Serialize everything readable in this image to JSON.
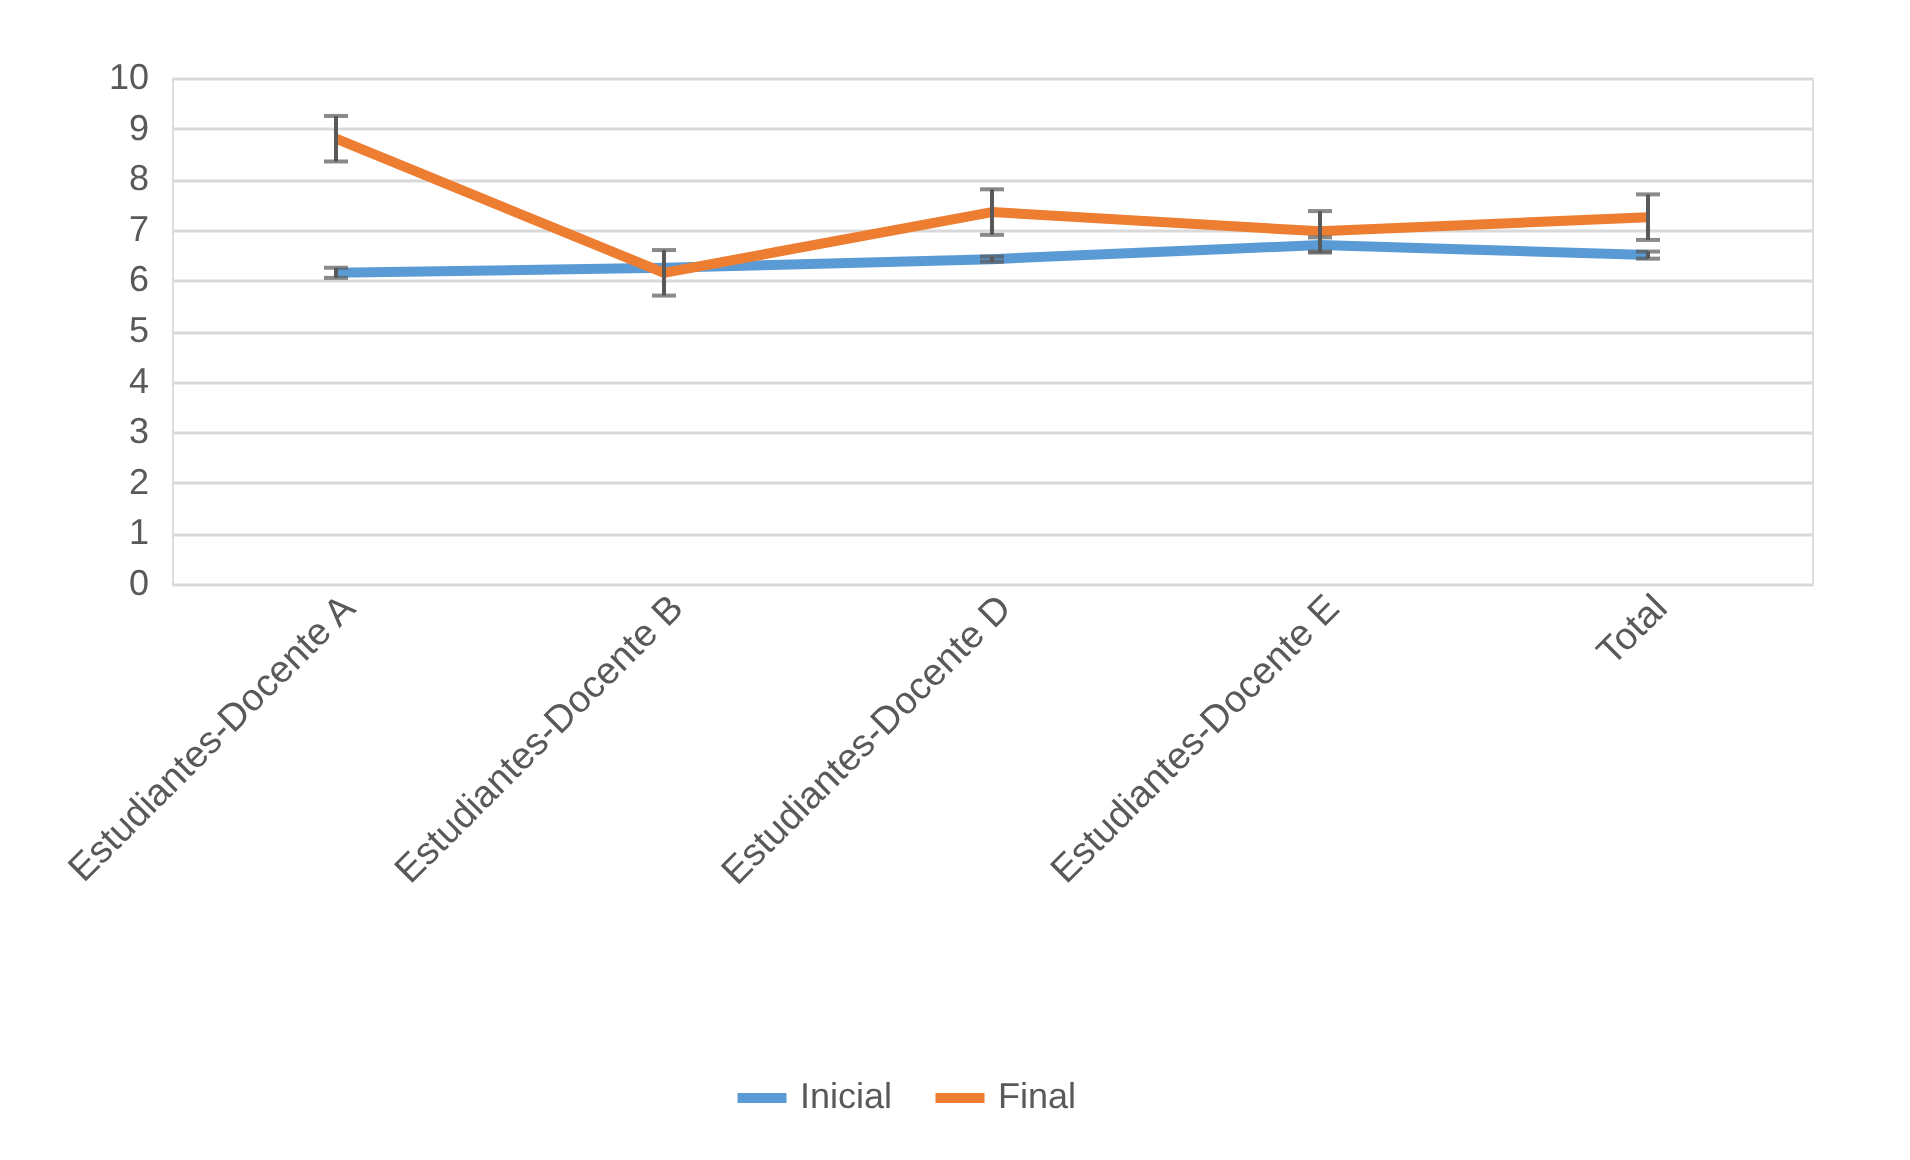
{
  "chart_data": {
    "type": "line",
    "categories": [
      "Estudiantes-Docente A",
      "Estudiantes-Docente B",
      "Estudiantes-Docente D",
      "Estudiantes-Docente E",
      "Total"
    ],
    "series": [
      {
        "name": "Inicial",
        "color": "#5b9bd5",
        "values": [
          6.15,
          6.25,
          6.42,
          6.7,
          6.5
        ],
        "errors": [
          0.1,
          null,
          0.05,
          0.15,
          0.07
        ]
      },
      {
        "name": "Final",
        "color": "#ed7d31",
        "values": [
          8.8,
          6.15,
          7.35,
          6.97,
          7.25
        ],
        "errors": [
          0.45,
          0.45,
          0.45,
          0.4,
          0.45
        ]
      }
    ],
    "ylim": [
      0,
      10
    ],
    "yticks": [
      0,
      1,
      2,
      3,
      4,
      5,
      6,
      7,
      8,
      9,
      10
    ],
    "grid": "y",
    "legend": "bottom",
    "marker": "none",
    "line_style": "solid"
  }
}
